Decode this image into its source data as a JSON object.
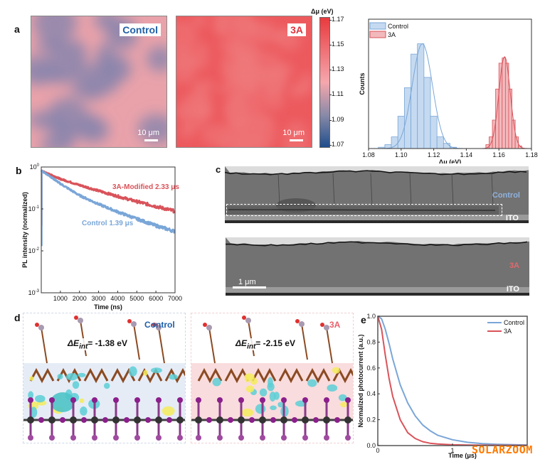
{
  "panels": {
    "a": {
      "letter": "a",
      "maps": [
        {
          "label": "Control",
          "label_color": "#1f5fa8",
          "scale": "10 μm",
          "base": "#e9a2aa",
          "blob": "#8d86ad"
        },
        {
          "label": "3A",
          "label_color": "#e0323c",
          "scale": "10 μm",
          "base": "#ec5a5e",
          "blob": "#f07a7c"
        }
      ],
      "colorbar": {
        "title": "Δμ (eV)",
        "ticks": [
          "1.17",
          "1.15",
          "1.13",
          "1.11",
          "1.09",
          "1.07"
        ],
        "colors": [
          "#e83a3e",
          "#f5a7ad",
          "#8a8aa8",
          "#1f4e8c"
        ]
      }
    },
    "b": {
      "letter": "b"
    },
    "c": {
      "letter": "c",
      "images": [
        {
          "label": "Control",
          "label_color": "#8fb2de",
          "substrate": "ITO"
        },
        {
          "label": "3A",
          "label_color": "#e06a6e",
          "substrate": "ITO",
          "scale": "1 μm"
        }
      ]
    },
    "d": {
      "letter": "d",
      "structures": [
        {
          "label": "Control",
          "label_color": "#1f5fa8",
          "energy_prefix": "ΔE",
          "energy_sub": "int",
          "energy_value": "= -1.38 eV",
          "band": "#e5ecf6"
        },
        {
          "label": "3A",
          "label_color": "#e8606a",
          "energy_prefix": "ΔE",
          "energy_sub": "int",
          "energy_value": "= -2.15 eV",
          "band": "#f9dcdd"
        }
      ]
    },
    "e": {
      "letter": "e"
    }
  },
  "watermark": "SOLARZOOM",
  "chart_data": [
    {
      "id": "a-histogram",
      "type": "bar",
      "title": "",
      "xlabel": "Δμ (eV)",
      "ylabel": "Counts",
      "xlim": [
        1.08,
        1.18
      ],
      "xticks": [
        "1.08",
        "1.10",
        "1.12",
        "1.14",
        "1.16",
        "1.18"
      ],
      "legend": "top-left",
      "series": [
        {
          "name": "Control",
          "color": "#7aa6d8",
          "fill": "#c5daf0",
          "bin_width": 0.004,
          "bins": [
            1.088,
            1.092,
            1.096,
            1.1,
            1.104,
            1.108,
            1.112,
            1.116,
            1.12,
            1.124,
            1.128,
            1.132
          ],
          "values": [
            0.01,
            0.03,
            0.09,
            0.25,
            0.47,
            0.73,
            0.81,
            0.55,
            0.25,
            0.09,
            0.04,
            0.01
          ],
          "fit_mean": 1.113,
          "fit_sigma": 0.0062,
          "fit_peak": 0.81
        },
        {
          "name": "3A",
          "color": "#d9535a",
          "fill": "#f2b9bc",
          "bin_width": 0.002,
          "bins": [
            1.153,
            1.155,
            1.157,
            1.159,
            1.161,
            1.163,
            1.165,
            1.167,
            1.169,
            1.171,
            1.173
          ],
          "values": [
            0.03,
            0.09,
            0.22,
            0.46,
            0.66,
            0.7,
            0.66,
            0.46,
            0.22,
            0.09,
            0.02
          ],
          "fit_mean": 1.1635,
          "fit_sigma": 0.0035,
          "fit_peak": 0.71
        }
      ]
    },
    {
      "id": "b-trpl",
      "type": "line",
      "title": "",
      "xlabel": "Time (ns)",
      "ylabel": "PL intensity (normalized)",
      "xlim": [
        0,
        7000
      ],
      "ylim": [
        0.001,
        1
      ],
      "yscale": "log",
      "xticks": [
        "1000",
        "2000",
        "3000",
        "4000",
        "5000",
        "6000",
        "7000"
      ],
      "yticks": [
        {
          "base": "10",
          "exp": "0"
        },
        {
          "base": "10",
          "exp": "-1"
        },
        {
          "base": "10",
          "exp": "-2"
        },
        {
          "base": "10",
          "exp": "-3"
        }
      ],
      "series": [
        {
          "name": "3A-Modified",
          "annotation": "3A-Modified 2.33 μs",
          "color": "#d9535a",
          "x": [
            0,
            500,
            1000,
            2000,
            3000,
            4000,
            5000,
            6000,
            7000
          ],
          "y": [
            0.82,
            0.65,
            0.52,
            0.37,
            0.27,
            0.2,
            0.15,
            0.115,
            0.088
          ]
        },
        {
          "name": "Control",
          "annotation": "Control 1.39 μs",
          "color": "#7aa6d8",
          "x": [
            0,
            500,
            1000,
            2000,
            3000,
            4000,
            5000,
            6000,
            7000
          ],
          "y": [
            0.82,
            0.58,
            0.4,
            0.21,
            0.13,
            0.085,
            0.058,
            0.04,
            0.029
          ]
        }
      ]
    },
    {
      "id": "e-tpc",
      "type": "line",
      "title": "",
      "xlabel": "Time (μs)",
      "ylabel": "Normalized photocurrent (a.u.)",
      "xlim": [
        0,
        2
      ],
      "ylim": [
        0,
        1.0
      ],
      "xticks": [
        "0",
        "1"
      ],
      "yticks": [
        "0.0",
        "0.2",
        "0.4",
        "0.6",
        "0.8",
        "1.0"
      ],
      "legend": "top-right",
      "series": [
        {
          "name": "Control",
          "color": "#7aa6d8",
          "x": [
            0,
            0.05,
            0.1,
            0.15,
            0.2,
            0.3,
            0.4,
            0.5,
            0.6,
            0.7,
            0.8,
            1.0,
            1.2,
            1.4,
            1.6,
            2.0
          ],
          "y": [
            1.0,
            0.98,
            0.9,
            0.79,
            0.67,
            0.47,
            0.33,
            0.23,
            0.16,
            0.115,
            0.08,
            0.045,
            0.025,
            0.015,
            0.01,
            0.005
          ]
        },
        {
          "name": "3A",
          "color": "#d9535a",
          "x": [
            0,
            0.05,
            0.1,
            0.15,
            0.2,
            0.3,
            0.4,
            0.5,
            0.6,
            0.7,
            0.8,
            1.0,
            1.2,
            1.6,
            2.0
          ],
          "y": [
            1.0,
            0.9,
            0.7,
            0.52,
            0.38,
            0.2,
            0.1,
            0.055,
            0.03,
            0.018,
            0.012,
            0.006,
            0.004,
            0.002,
            0.001
          ]
        }
      ]
    }
  ]
}
